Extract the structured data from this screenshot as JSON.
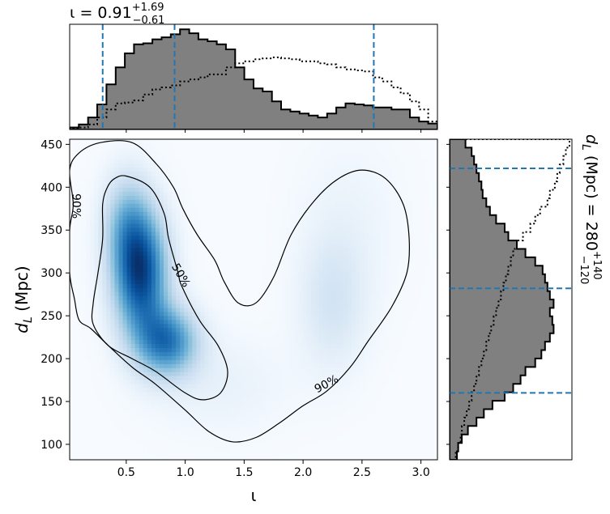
{
  "chart_data": [
    {
      "id": "joint",
      "type": "heatmap",
      "x": {
        "label": "ι",
        "lim": [
          0.02,
          3.14
        ],
        "ticks": [
          0.5,
          1.0,
          1.5,
          2.0,
          2.5,
          3.0
        ],
        "tick_labels": [
          "0.5",
          "1.0",
          "1.5",
          "2.0",
          "2.5",
          "3.0"
        ]
      },
      "y": {
        "label": "d_L (Mpc)",
        "label_main": "d",
        "label_sub": "L",
        "label_rest": " (Mpc)",
        "lim": [
          82,
          456
        ],
        "ticks": [
          100,
          150,
          200,
          250,
          300,
          350,
          400,
          450
        ],
        "tick_labels": [
          "100",
          "150",
          "200",
          "250",
          "300",
          "350",
          "400",
          "450"
        ]
      },
      "colormap": "Blues",
      "density_peaks": [
        {
          "x": 0.62,
          "y": 300,
          "sx": 0.16,
          "sy": 50,
          "w": 1.0
        },
        {
          "x": 0.85,
          "y": 220,
          "sx": 0.18,
          "sy": 28,
          "w": 0.75
        },
        {
          "x": 0.5,
          "y": 360,
          "sx": 0.14,
          "sy": 40,
          "w": 0.35
        },
        {
          "x": 2.25,
          "y": 265,
          "sx": 0.2,
          "sy": 55,
          "w": 0.18
        },
        {
          "x": 2.4,
          "y": 360,
          "sx": 0.3,
          "sy": 70,
          "w": 0.06
        },
        {
          "x": 1.3,
          "y": 170,
          "sx": 0.4,
          "sy": 40,
          "w": 0.08
        }
      ],
      "contours": [
        {
          "label": "50%",
          "label_at": [
            0.96,
            297
          ],
          "label_angle": 60,
          "points": [
            [
              0.3,
              380
            ],
            [
              0.3,
              340
            ],
            [
              0.26,
              300
            ],
            [
              0.22,
              265
            ],
            [
              0.22,
              240
            ],
            [
              0.35,
              215
            ],
            [
              0.55,
              200
            ],
            [
              0.75,
              185
            ],
            [
              1.0,
              160
            ],
            [
              1.15,
              152
            ],
            [
              1.3,
              160
            ],
            [
              1.36,
              185
            ],
            [
              1.28,
              215
            ],
            [
              1.12,
              245
            ],
            [
              0.97,
              285
            ],
            [
              0.94,
              300
            ],
            [
              0.86,
              340
            ],
            [
              0.82,
              370
            ],
            [
              0.7,
              400
            ],
            [
              0.5,
              413
            ],
            [
              0.4,
              410
            ],
            [
              0.34,
              400
            ],
            [
              0.3,
              380
            ]
          ]
        },
        {
          "label": "90%",
          "label_at": [
            2.2,
            170
          ],
          "label_angle": -28,
          "points": [
            [
              0.02,
              420
            ],
            [
              0.05,
              380
            ],
            [
              0.02,
              350
            ],
            [
              0.02,
              300
            ],
            [
              0.06,
              270
            ],
            [
              0.1,
              245
            ],
            [
              0.2,
              235
            ],
            [
              0.35,
              215
            ],
            [
              0.55,
              190
            ],
            [
              0.75,
              170
            ],
            [
              1.0,
              140
            ],
            [
              1.2,
              115
            ],
            [
              1.4,
              103
            ],
            [
              1.6,
              108
            ],
            [
              1.8,
              125
            ],
            [
              2.0,
              145
            ],
            [
              2.2,
              162
            ],
            [
              2.4,
              190
            ],
            [
              2.55,
              220
            ],
            [
              2.75,
              260
            ],
            [
              2.88,
              300
            ],
            [
              2.9,
              340
            ],
            [
              2.85,
              380
            ],
            [
              2.7,
              410
            ],
            [
              2.5,
              420
            ],
            [
              2.3,
              410
            ],
            [
              2.1,
              385
            ],
            [
              1.9,
              345
            ],
            [
              1.75,
              295
            ],
            [
              1.6,
              265
            ],
            [
              1.45,
              265
            ],
            [
              1.33,
              290
            ],
            [
              1.25,
              315
            ],
            [
              1.1,
              345
            ],
            [
              0.98,
              375
            ],
            [
              0.9,
              400
            ],
            [
              0.75,
              428
            ],
            [
              0.55,
              452
            ],
            [
              0.28,
              452
            ],
            [
              0.1,
              440
            ],
            [
              0.02,
              420
            ]
          ]
        }
      ]
    },
    {
      "id": "iota-marginal",
      "type": "area",
      "title": "ι = 0.91",
      "title_main": "ι = 0.91",
      "title_sup": "+1.69",
      "title_sub": "−0.61",
      "x": {
        "lim": [
          0.02,
          3.14
        ]
      },
      "y": {
        "lim": [
          0,
          1.05
        ]
      },
      "quantiles": [
        0.3,
        0.91,
        2.6
      ],
      "bins": 40,
      "posterior": [
        0.02,
        0.05,
        0.12,
        0.25,
        0.45,
        0.62,
        0.76,
        0.85,
        0.86,
        0.9,
        0.92,
        0.95,
        1.0,
        0.96,
        0.9,
        0.88,
        0.85,
        0.8,
        0.62,
        0.5,
        0.41,
        0.38,
        0.28,
        0.2,
        0.18,
        0.16,
        0.14,
        0.12,
        0.16,
        0.22,
        0.26,
        0.25,
        0.24,
        0.22,
        0.22,
        0.2,
        0.2,
        0.12,
        0.08,
        0.06
      ],
      "prior": [
        0.01,
        0.02,
        0.05,
        0.12,
        0.2,
        0.26,
        0.27,
        0.29,
        0.35,
        0.4,
        0.42,
        0.44,
        0.48,
        0.5,
        0.52,
        0.55,
        0.55,
        0.62,
        0.66,
        0.68,
        0.7,
        0.71,
        0.72,
        0.71,
        0.7,
        0.68,
        0.68,
        0.66,
        0.65,
        0.62,
        0.6,
        0.59,
        0.58,
        0.52,
        0.48,
        0.42,
        0.36,
        0.28,
        0.2,
        0.08
      ]
    },
    {
      "id": "dl-marginal",
      "type": "area",
      "title": "d_L (Mpc) = 280",
      "title_main": "d",
      "title_sub_L": "L",
      "title_rest": " (Mpc) = 280",
      "title_sup": "+140",
      "title_sub": "−120",
      "y": {
        "lim": [
          82,
          456
        ]
      },
      "x": {
        "lim": [
          0,
          1.0
        ]
      },
      "quantiles": [
        160,
        282,
        422
      ],
      "bins": 38,
      "posterior": [
        0.06,
        0.07,
        0.1,
        0.15,
        0.22,
        0.28,
        0.35,
        0.45,
        0.52,
        0.58,
        0.62,
        0.7,
        0.75,
        0.78,
        0.82,
        0.85,
        0.84,
        0.82,
        0.85,
        0.82,
        0.8,
        0.78,
        0.76,
        0.7,
        0.62,
        0.55,
        0.48,
        0.45,
        0.38,
        0.33,
        0.3,
        0.27,
        0.26,
        0.24,
        0.22,
        0.2,
        0.18,
        0.13
      ],
      "prior": [
        0.05,
        0.07,
        0.09,
        0.1,
        0.12,
        0.14,
        0.16,
        0.18,
        0.2,
        0.22,
        0.24,
        0.26,
        0.28,
        0.3,
        0.32,
        0.34,
        0.36,
        0.38,
        0.4,
        0.42,
        0.44,
        0.46,
        0.48,
        0.5,
        0.52,
        0.55,
        0.6,
        0.66,
        0.7,
        0.74,
        0.8,
        0.82,
        0.86,
        0.88,
        0.9,
        0.93,
        0.95,
        0.98
      ]
    }
  ],
  "colors": {
    "posterior_fill": "#808080",
    "quantile_line": "#1f77b4",
    "contour": "#000000"
  }
}
